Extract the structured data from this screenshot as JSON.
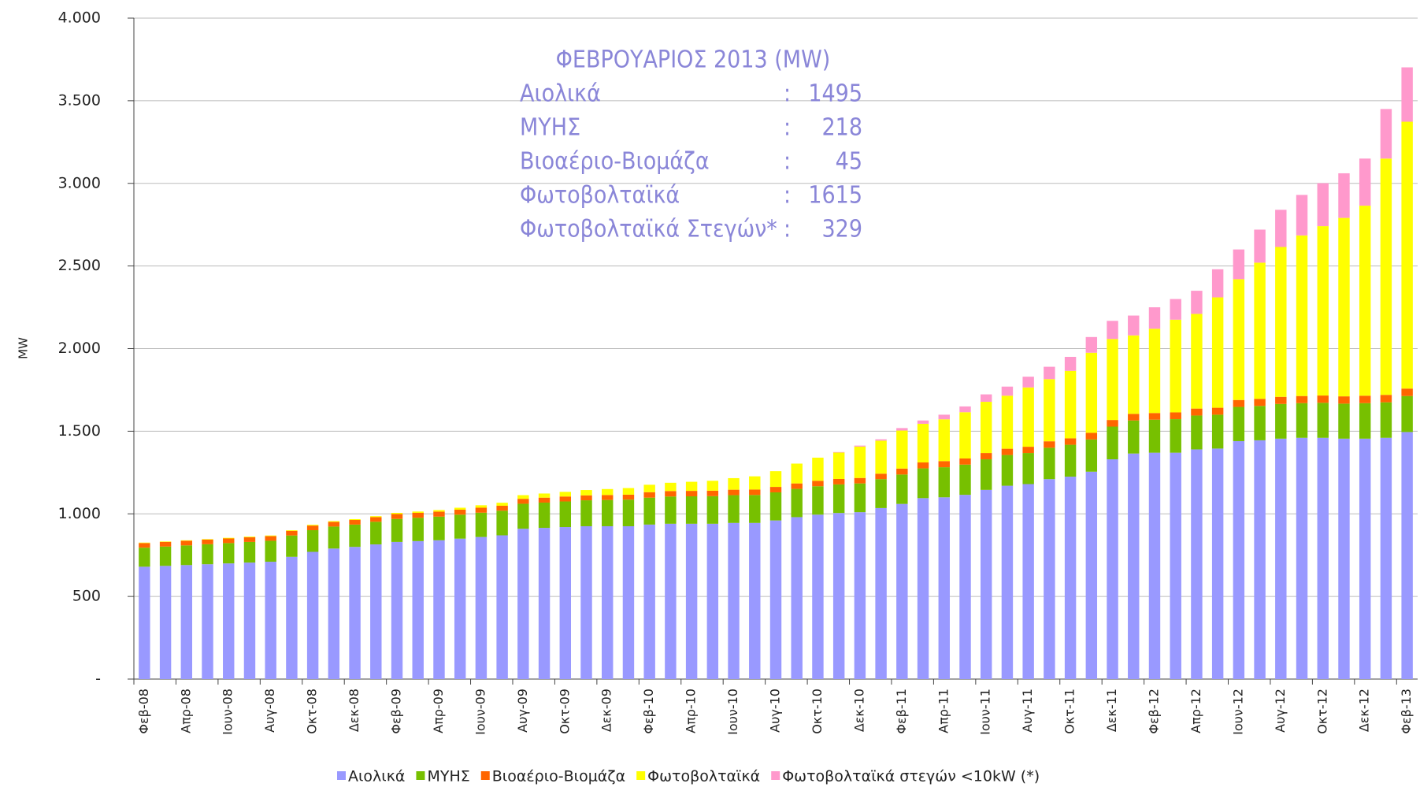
{
  "chart_data": {
    "type": "stacked_bar",
    "y_label": "MW",
    "categories": [
      "Φεβ-08",
      null,
      "Απρ-08",
      null,
      "Ιουν-08",
      null,
      "Αυγ-08",
      null,
      "Οκτ-08",
      null,
      "Δεκ-08",
      null,
      "Φεβ-09",
      null,
      "Απρ-09",
      null,
      "Ιουν-09",
      null,
      "Αυγ-09",
      null,
      "Οκτ-09",
      null,
      "Δεκ-09",
      null,
      "Φεβ-10",
      null,
      "Απρ-10",
      null,
      "Ιουν-10",
      null,
      "Αυγ-10",
      null,
      "Οκτ-10",
      null,
      "Δεκ-10",
      null,
      "Φεβ-11",
      null,
      "Απρ-11",
      null,
      "Ιουν-11",
      null,
      "Αυγ-11",
      null,
      "Οκτ-11",
      null,
      "Δεκ-11",
      null,
      "Φεβ-12",
      null,
      "Απρ-12",
      null,
      "Ιουν-12",
      null,
      "Αυγ-12",
      null,
      "Οκτ-12",
      null,
      "Δεκ-12",
      null,
      "Φεβ-13"
    ],
    "series": [
      {
        "name": "Αιολικά",
        "color": "#9999ff",
        "values": [
          680,
          685,
          690,
          695,
          700,
          705,
          710,
          740,
          770,
          790,
          800,
          815,
          830,
          835,
          840,
          850,
          860,
          870,
          910,
          915,
          920,
          925,
          925,
          925,
          935,
          940,
          940,
          940,
          945,
          945,
          960,
          980,
          995,
          1005,
          1010,
          1035,
          1060,
          1095,
          1100,
          1115,
          1145,
          1170,
          1180,
          1210,
          1225,
          1255,
          1330,
          1365,
          1370,
          1370,
          1390,
          1395,
          1440,
          1445,
          1455,
          1460,
          1460,
          1455,
          1455,
          1460,
          1495
        ]
      },
      {
        "name": "ΜΥΗΣ",
        "color": "#77c000",
        "values": [
          115,
          117,
          119,
          121,
          123,
          125,
          127,
          129,
          131,
          133,
          135,
          137,
          139,
          141,
          143,
          145,
          147,
          149,
          151,
          153,
          155,
          157,
          159,
          161,
          163,
          165,
          166,
          167,
          168,
          169,
          170,
          171,
          172,
          173,
          174,
          175,
          178,
          180,
          182,
          183,
          185,
          186,
          188,
          190,
          193,
          195,
          198,
          200,
          200,
          203,
          205,
          205,
          207,
          208,
          210,
          210,
          212,
          212,
          215,
          215,
          218
        ]
      },
      {
        "name": "Βιοαέριο-Βιομάζα",
        "color": "#ff6600",
        "values": [
          28,
          28,
          28,
          28,
          28,
          28,
          28,
          28,
          28,
          28,
          28,
          28,
          30,
          30,
          30,
          30,
          30,
          30,
          30,
          30,
          30,
          30,
          30,
          30,
          33,
          33,
          33,
          33,
          33,
          33,
          33,
          33,
          33,
          33,
          33,
          33,
          36,
          36,
          37,
          37,
          38,
          38,
          38,
          39,
          39,
          40,
          40,
          40,
          40,
          41,
          42,
          42,
          42,
          43,
          43,
          43,
          44,
          44,
          45,
          45,
          45
        ]
      },
      {
        "name": "Φωτοβολταϊκά",
        "color": "#ffff00",
        "values": [
          3,
          3,
          3,
          3,
          4,
          4,
          4,
          4,
          5,
          5,
          5,
          6,
          7,
          8,
          10,
          12,
          15,
          18,
          22,
          25,
          28,
          32,
          36,
          40,
          45,
          50,
          55,
          60,
          70,
          80,
          95,
          120,
          140,
          160,
          190,
          200,
          230,
          234,
          253,
          280,
          310,
          321,
          359,
          376,
          408,
          485,
          490,
          475,
          510,
          561,
          573,
          668,
          731,
          824,
          907,
          972,
          1025,
          1080,
          1150,
          1430,
          1615
        ]
      },
      {
        "name": "Φωτοβολταϊκά στεγών <10kW (*)",
        "color": "#ff99cc",
        "values": [
          0,
          0,
          0,
          0,
          0,
          0,
          0,
          0,
          0,
          0,
          0,
          0,
          0,
          0,
          0,
          0,
          0,
          0,
          0,
          0,
          0,
          0,
          0,
          0,
          0,
          0,
          0,
          0,
          0,
          0,
          0,
          0,
          0,
          3,
          6,
          8,
          15,
          20,
          28,
          35,
          45,
          55,
          65,
          75,
          85,
          95,
          110,
          120,
          130,
          125,
          140,
          170,
          180,
          200,
          225,
          245,
          260,
          270,
          285,
          300,
          329
        ]
      }
    ],
    "ylim": [
      0,
      4000
    ],
    "yticks": [
      {
        "value": 0,
        "label": "-"
      },
      500,
      {
        "value": 1000,
        "label": "1.000"
      },
      {
        "value": 1500,
        "label": "1.500"
      },
      {
        "value": 2000,
        "label": "2.000"
      },
      {
        "value": 2500,
        "label": "2.500"
      },
      {
        "value": 3000,
        "label": "3.000"
      },
      {
        "value": 3500,
        "label": "3.500"
      },
      {
        "value": 4000,
        "label": "4.000"
      }
    ],
    "grid": true,
    "legend": "bottom",
    "annotation": {
      "title": "ΦΕΒΡΟΥΑΡΙΟΣ 2013 (MW)",
      "rows": [
        {
          "label": "Αιολικά",
          "value": 1495
        },
        {
          "label": "ΜΥΗΣ",
          "value": 218
        },
        {
          "label": "Βιοαέριο-Βιομάζα",
          "value": 45
        },
        {
          "label": "Φωτοβολταϊκά",
          "value": 1615
        },
        {
          "label": "Φωτοβολταϊκά Στεγών*",
          "value": 329
        }
      ]
    }
  }
}
